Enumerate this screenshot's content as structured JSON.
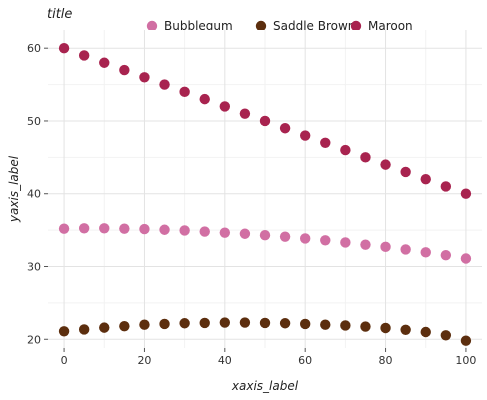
{
  "chart_data": {
    "type": "scatter",
    "title": "title",
    "xlabel": "xaxis_label",
    "ylabel": "yaxis_label",
    "xlim": [
      -4,
      104
    ],
    "ylim": [
      18.8,
      62.5
    ],
    "xticks": [
      0,
      20,
      40,
      60,
      80,
      100
    ],
    "yticks": [
      20,
      30,
      40,
      50,
      60
    ],
    "grid": true,
    "legend_position": "top-right",
    "x": [
      0,
      5,
      10,
      15,
      20,
      25,
      30,
      35,
      40,
      45,
      50,
      55,
      60,
      65,
      70,
      75,
      80,
      85,
      90,
      95,
      100
    ],
    "series": [
      {
        "name": "Bubblegum",
        "color": "#D16FA3",
        "values": [
          35.2,
          35.25,
          35.25,
          35.2,
          35.15,
          35.05,
          34.95,
          34.8,
          34.65,
          34.5,
          34.3,
          34.1,
          33.85,
          33.6,
          33.3,
          33.0,
          32.7,
          32.35,
          31.95,
          31.55,
          31.1
        ]
      },
      {
        "name": "Saddle Brown",
        "color": "#5C2E0E",
        "values": [
          21.1,
          21.35,
          21.6,
          21.8,
          22.0,
          22.1,
          22.2,
          22.25,
          22.3,
          22.3,
          22.25,
          22.2,
          22.1,
          22.0,
          21.9,
          21.75,
          21.55,
          21.3,
          21.0,
          20.55,
          19.8
        ]
      },
      {
        "name": "Maroon",
        "color": "#A8234F",
        "values": [
          60.0,
          59.0,
          58.0,
          57.0,
          56.0,
          55.0,
          54.0,
          53.0,
          52.0,
          51.0,
          50.0,
          49.0,
          48.0,
          47.0,
          46.0,
          45.0,
          44.0,
          43.0,
          42.0,
          41.0,
          40.0
        ]
      }
    ]
  }
}
